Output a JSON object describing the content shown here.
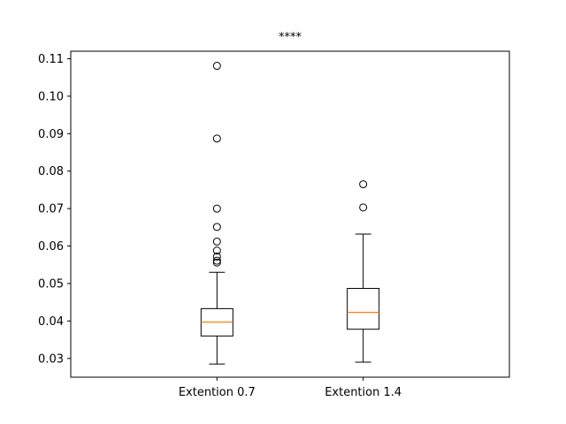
{
  "chart_data": {
    "type": "box",
    "title": "****",
    "xlabel": "",
    "ylabel": "",
    "ylim": [
      0.025,
      0.112
    ],
    "yticks": [
      "0.03",
      "0.04",
      "0.05",
      "0.06",
      "0.07",
      "0.08",
      "0.09",
      "0.10",
      "0.11"
    ],
    "ytick_values": [
      0.03,
      0.04,
      0.05,
      0.06,
      0.07,
      0.08,
      0.09,
      0.1,
      0.11
    ],
    "categories": [
      "Extention 0.7",
      "Extention 1.4"
    ],
    "boxes": [
      {
        "name": "Extention 0.7",
        "whisker_low": 0.0285,
        "q1": 0.036,
        "median": 0.0397,
        "q3": 0.0433,
        "whisker_high": 0.053,
        "fliers": [
          0.1081,
          0.0887,
          0.07,
          0.0651,
          0.0612,
          0.0588,
          0.0572,
          0.0561,
          0.0556
        ]
      },
      {
        "name": "Extention 1.4",
        "whisker_low": 0.029,
        "q1": 0.0378,
        "median": 0.0423,
        "q3": 0.0487,
        "whisker_high": 0.0632,
        "fliers": [
          0.0765,
          0.0703
        ]
      }
    ],
    "median_color": "#ff7f0e",
    "box_color": "#000000",
    "grid": false,
    "legend": "none"
  }
}
